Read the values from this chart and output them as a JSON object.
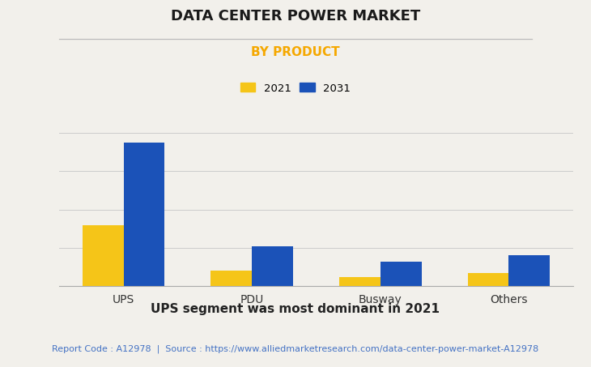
{
  "title": "DATA CENTER POWER MARKET",
  "subtitle": "BY PRODUCT",
  "categories": [
    "UPS",
    "PDU",
    "Busway",
    "Others"
  ],
  "values_2021": [
    32,
    8,
    5,
    7
  ],
  "values_2031": [
    75,
    21,
    13,
    16
  ],
  "color_2021": "#F5C518",
  "color_2031": "#1B52B8",
  "legend_labels": [
    "2021",
    "2031"
  ],
  "title_fontsize": 13,
  "subtitle_fontsize": 11,
  "subtitle_color": "#F5A800",
  "background_color": "#F2F0EB",
  "axis_background": "#F2F0EB",
  "bar_width": 0.32,
  "grid_color": "#CCCCCC",
  "ylim": [
    0,
    90
  ],
  "footnote": "UPS segment was most dominant in 2021",
  "source_text": "Report Code : A12978  |  Source : https://www.alliedmarketresearch.com/data-center-power-market-A12978",
  "source_color": "#4472C4",
  "footnote_fontsize": 11,
  "source_fontsize": 8,
  "tick_fontsize": 10
}
